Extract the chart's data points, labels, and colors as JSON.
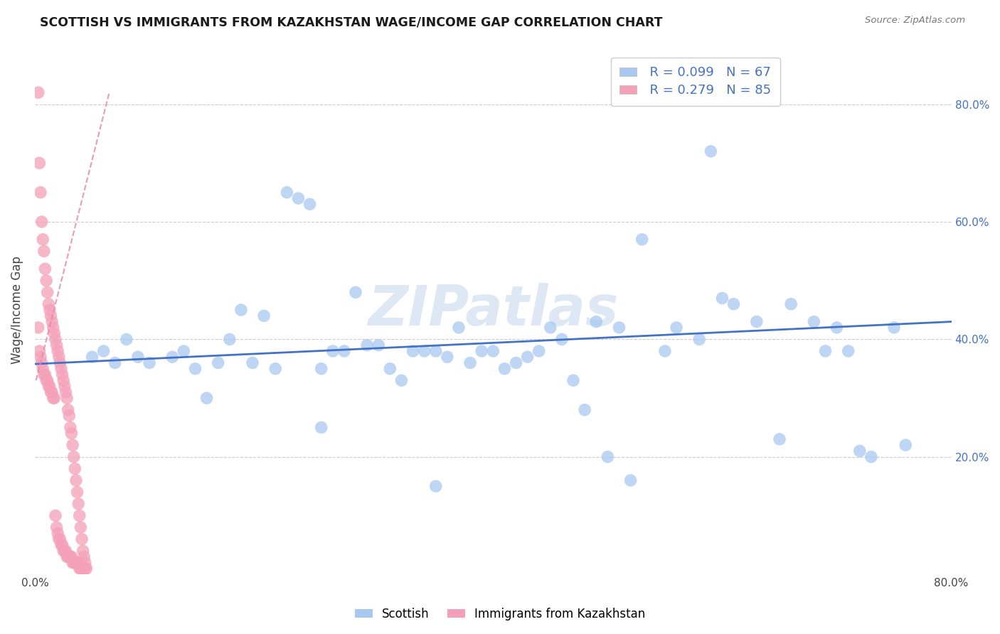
{
  "title": "SCOTTISH VS IMMIGRANTS FROM KAZAKHSTAN WAGE/INCOME GAP CORRELATION CHART",
  "source": "Source: ZipAtlas.com",
  "ylabel": "Wage/Income Gap",
  "xlim": [
    0.0,
    0.8
  ],
  "ylim": [
    0.0,
    0.9
  ],
  "blue_color": "#a8c8f0",
  "pink_color": "#f4a0b8",
  "blue_line_color": "#4472c4",
  "pink_line_color": "#e888a8",
  "watermark": "ZIPatlas",
  "ytick_labels": [
    "20.0%",
    "40.0%",
    "60.0%",
    "80.0%"
  ],
  "ytick_vals": [
    0.2,
    0.4,
    0.6,
    0.8
  ],
  "xtick_vals": [
    0.0,
    0.2,
    0.4,
    0.6,
    0.8
  ],
  "bottom_legend": [
    "Scottish",
    "Immigrants from Kazakhstan"
  ],
  "blue_x": [
    0.06,
    0.09,
    0.07,
    0.13,
    0.16,
    0.18,
    0.2,
    0.22,
    0.23,
    0.24,
    0.25,
    0.26,
    0.27,
    0.28,
    0.3,
    0.32,
    0.33,
    0.35,
    0.37,
    0.38,
    0.4,
    0.41,
    0.43,
    0.45,
    0.47,
    0.48,
    0.5,
    0.52,
    0.55,
    0.58,
    0.6,
    0.65,
    0.68,
    0.7,
    0.72,
    0.75,
    0.08,
    0.1,
    0.12,
    0.14,
    0.17,
    0.19,
    0.21,
    0.29,
    0.31,
    0.34,
    0.36,
    0.39,
    0.42,
    0.44,
    0.46,
    0.49,
    0.51,
    0.53,
    0.56,
    0.59,
    0.61,
    0.63,
    0.66,
    0.69,
    0.71,
    0.73,
    0.76,
    0.05,
    0.15,
    0.25,
    0.35
  ],
  "blue_y": [
    0.38,
    0.37,
    0.36,
    0.38,
    0.36,
    0.45,
    0.44,
    0.65,
    0.64,
    0.63,
    0.35,
    0.38,
    0.38,
    0.48,
    0.39,
    0.33,
    0.38,
    0.38,
    0.42,
    0.36,
    0.38,
    0.35,
    0.37,
    0.42,
    0.33,
    0.28,
    0.2,
    0.16,
    0.38,
    0.4,
    0.47,
    0.23,
    0.43,
    0.42,
    0.21,
    0.42,
    0.4,
    0.36,
    0.37,
    0.35,
    0.4,
    0.36,
    0.35,
    0.39,
    0.35,
    0.38,
    0.37,
    0.38,
    0.36,
    0.38,
    0.4,
    0.43,
    0.42,
    0.57,
    0.42,
    0.72,
    0.46,
    0.43,
    0.46,
    0.38,
    0.38,
    0.2,
    0.22,
    0.37,
    0.3,
    0.25,
    0.15
  ],
  "pink_x": [
    0.003,
    0.003,
    0.004,
    0.004,
    0.005,
    0.005,
    0.006,
    0.006,
    0.007,
    0.007,
    0.008,
    0.008,
    0.009,
    0.009,
    0.01,
    0.01,
    0.011,
    0.011,
    0.012,
    0.012,
    0.013,
    0.013,
    0.014,
    0.014,
    0.015,
    0.015,
    0.016,
    0.016,
    0.017,
    0.017,
    0.018,
    0.018,
    0.019,
    0.019,
    0.02,
    0.02,
    0.021,
    0.021,
    0.022,
    0.022,
    0.023,
    0.023,
    0.024,
    0.024,
    0.025,
    0.025,
    0.026,
    0.026,
    0.027,
    0.027,
    0.028,
    0.028,
    0.029,
    0.029,
    0.03,
    0.03,
    0.031,
    0.031,
    0.032,
    0.032,
    0.033,
    0.033,
    0.034,
    0.034,
    0.035,
    0.035,
    0.036,
    0.036,
    0.037,
    0.037,
    0.038,
    0.038,
    0.039,
    0.039,
    0.04,
    0.04,
    0.041,
    0.041,
    0.042,
    0.042,
    0.043,
    0.043,
    0.044,
    0.044,
    0.045
  ],
  "pink_y": [
    0.82,
    0.42,
    0.7,
    0.38,
    0.65,
    0.37,
    0.6,
    0.36,
    0.57,
    0.35,
    0.55,
    0.34,
    0.52,
    0.34,
    0.5,
    0.33,
    0.48,
    0.33,
    0.46,
    0.32,
    0.45,
    0.32,
    0.44,
    0.31,
    0.43,
    0.31,
    0.42,
    0.3,
    0.41,
    0.3,
    0.4,
    0.1,
    0.39,
    0.08,
    0.38,
    0.07,
    0.37,
    0.06,
    0.36,
    0.06,
    0.35,
    0.05,
    0.34,
    0.05,
    0.33,
    0.04,
    0.32,
    0.04,
    0.31,
    0.04,
    0.3,
    0.03,
    0.28,
    0.03,
    0.27,
    0.03,
    0.25,
    0.03,
    0.24,
    0.03,
    0.22,
    0.02,
    0.2,
    0.02,
    0.18,
    0.02,
    0.16,
    0.02,
    0.14,
    0.02,
    0.12,
    0.02,
    0.1,
    0.01,
    0.08,
    0.01,
    0.06,
    0.01,
    0.04,
    0.01,
    0.03,
    0.01,
    0.02,
    0.01,
    0.01
  ]
}
